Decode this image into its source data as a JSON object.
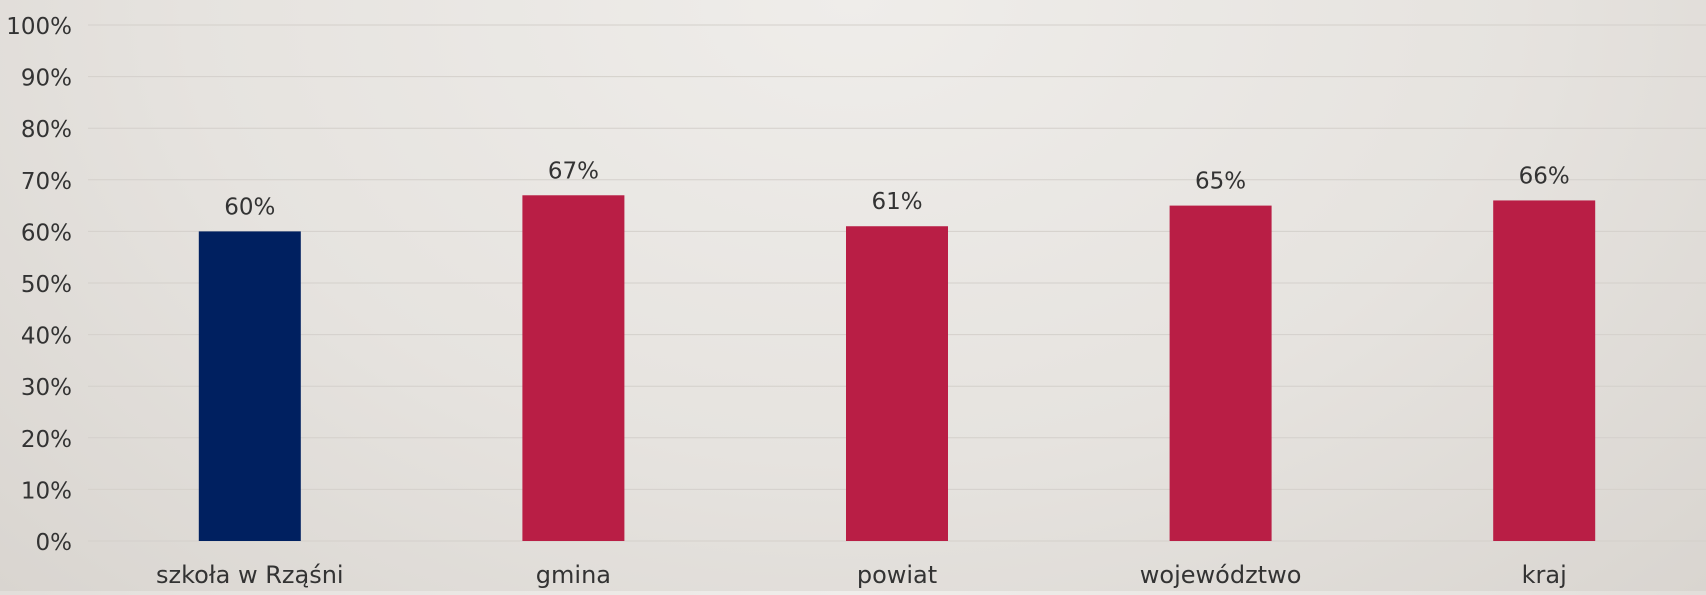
{
  "chart_data": {
    "type": "bar",
    "title": "",
    "xlabel": "",
    "ylabel": "",
    "categories": [
      "szkoła w Rząśni",
      "gmina",
      "powiat",
      "województwo",
      "kraj"
    ],
    "values": [
      60,
      67,
      61,
      65,
      66
    ],
    "value_labels": [
      "60%",
      "67%",
      "61%",
      "65%",
      "66%"
    ],
    "bar_colors": [
      "#002060",
      "#b91e45",
      "#b91e45",
      "#b91e45",
      "#b91e45"
    ],
    "ylim": [
      0,
      100
    ],
    "y_ticks": [
      0,
      10,
      20,
      30,
      40,
      50,
      60,
      70,
      80,
      90,
      100
    ],
    "y_tick_labels": [
      "0%",
      "10%",
      "20%",
      "30%",
      "40%",
      "50%",
      "60%",
      "70%",
      "80%",
      "90%",
      "100%"
    ],
    "grid": true,
    "legend": "none"
  }
}
